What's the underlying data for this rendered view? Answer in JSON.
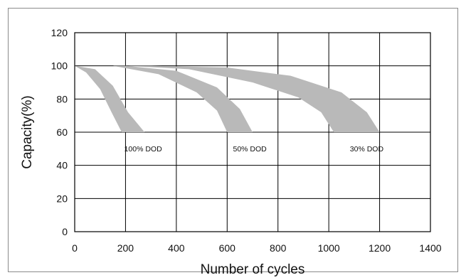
{
  "chart_data": {
    "type": "area",
    "title": "",
    "xlabel": "Number of cycles",
    "ylabel": "Capacity(%)",
    "xlim": [
      0,
      1400
    ],
    "ylim": [
      0,
      120
    ],
    "x_ticks": [
      "0",
      "200",
      "400",
      "600",
      "800",
      "1000",
      "1200",
      "1400"
    ],
    "y_ticks": [
      "0",
      "20",
      "40",
      "60",
      "80",
      "100",
      "120"
    ],
    "grid": true,
    "band_color": "#b9b9b9",
    "series": [
      {
        "name": "100% DOD",
        "upper": [
          [
            0,
            100
          ],
          [
            80,
            98
          ],
          [
            150,
            88
          ],
          [
            210,
            72
          ],
          [
            275,
            60
          ]
        ],
        "lower": [
          [
            0,
            100
          ],
          [
            45,
            96
          ],
          [
            100,
            86
          ],
          [
            145,
            72
          ],
          [
            185,
            60
          ]
        ]
      },
      {
        "name": "50% DOD",
        "upper": [
          [
            0,
            100
          ],
          [
            200,
            100
          ],
          [
            400,
            97
          ],
          [
            560,
            87
          ],
          [
            650,
            74
          ],
          [
            700,
            60
          ]
        ],
        "lower": [
          [
            0,
            100
          ],
          [
            150,
            100
          ],
          [
            330,
            95
          ],
          [
            480,
            84
          ],
          [
            560,
            73
          ],
          [
            600,
            60
          ]
        ]
      },
      {
        "name": "30% DOD",
        "upper": [
          [
            0,
            100
          ],
          [
            300,
            100
          ],
          [
            600,
            99
          ],
          [
            850,
            94
          ],
          [
            1050,
            84
          ],
          [
            1150,
            72
          ],
          [
            1200,
            60
          ]
        ],
        "lower": [
          [
            0,
            100
          ],
          [
            200,
            100
          ],
          [
            450,
            98
          ],
          [
            700,
            90
          ],
          [
            880,
            81
          ],
          [
            970,
            72
          ],
          [
            1020,
            60
          ]
        ]
      }
    ]
  }
}
